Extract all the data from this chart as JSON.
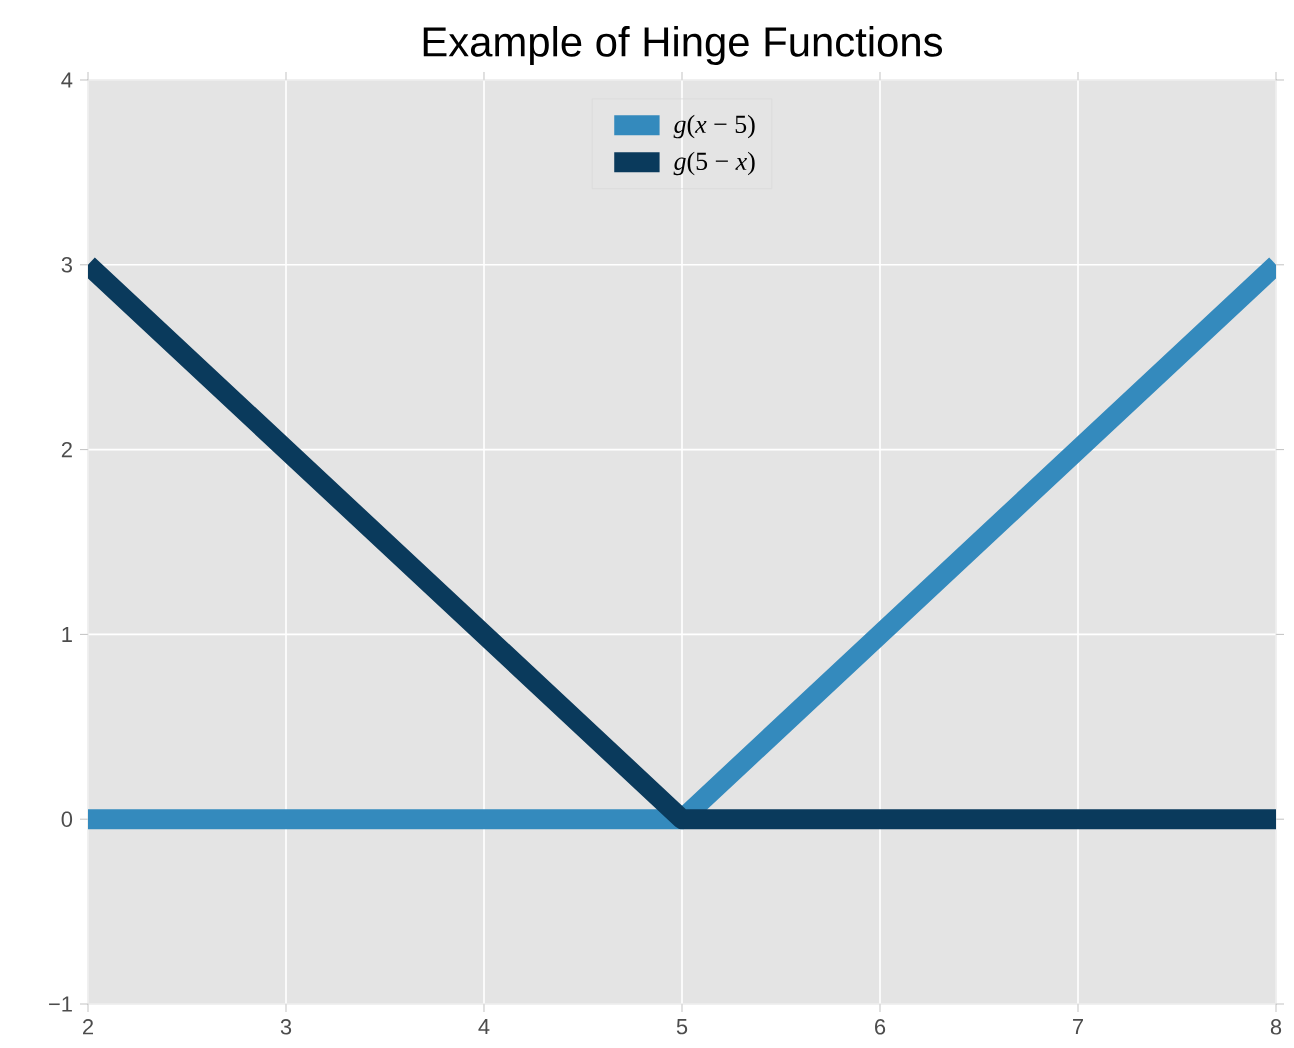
{
  "chart_data": {
    "type": "line",
    "title": "Example of Hinge Functions",
    "x": [
      2,
      5,
      8
    ],
    "series": [
      {
        "name": "*g*(*x* − 5)",
        "color": "#348abd",
        "values": [
          0,
          0,
          3
        ]
      },
      {
        "name": "*g*(5 − *x*)",
        "color": "#0a3a5c",
        "values": [
          3,
          0,
          0
        ]
      }
    ],
    "xlim": [
      2,
      8
    ],
    "xticks": [
      2,
      3,
      4,
      5,
      6,
      7,
      8
    ],
    "ylim": [
      -1,
      4
    ],
    "yticks": [
      {
        "value": -1,
        "label": "−1"
      },
      0,
      1,
      2,
      3,
      4
    ],
    "grid": true,
    "legend": "top",
    "marker": "none",
    "line_style": "solid"
  }
}
